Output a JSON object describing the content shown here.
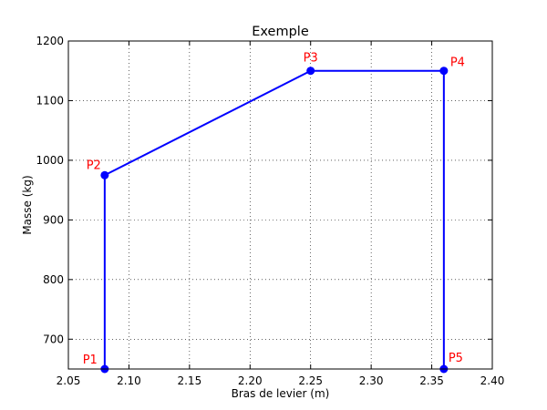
{
  "chart_data": {
    "type": "line",
    "title": "Exemple",
    "xlabel": "Bras de levier (m)",
    "ylabel": "Masse (kg)",
    "xlim": [
      2.05,
      2.4
    ],
    "ylim": [
      650,
      1200
    ],
    "x_ticks": [
      "2.05",
      "2.10",
      "2.15",
      "2.20",
      "2.25",
      "2.30",
      "2.35",
      "2.40"
    ],
    "y_ticks": [
      "700",
      "800",
      "900",
      "1000",
      "1100",
      "1200"
    ],
    "grid": true,
    "series": [
      {
        "color": "#0000ff",
        "points": [
          {
            "label": "P1",
            "x": 2.08,
            "y": 650
          },
          {
            "label": "P2",
            "x": 2.08,
            "y": 975
          },
          {
            "label": "P3",
            "x": 2.25,
            "y": 1150
          },
          {
            "label": "P4",
            "x": 2.36,
            "y": 1150
          },
          {
            "label": "P5",
            "x": 2.36,
            "y": 650
          }
        ]
      }
    ],
    "point_label_color": "#ff0000"
  }
}
